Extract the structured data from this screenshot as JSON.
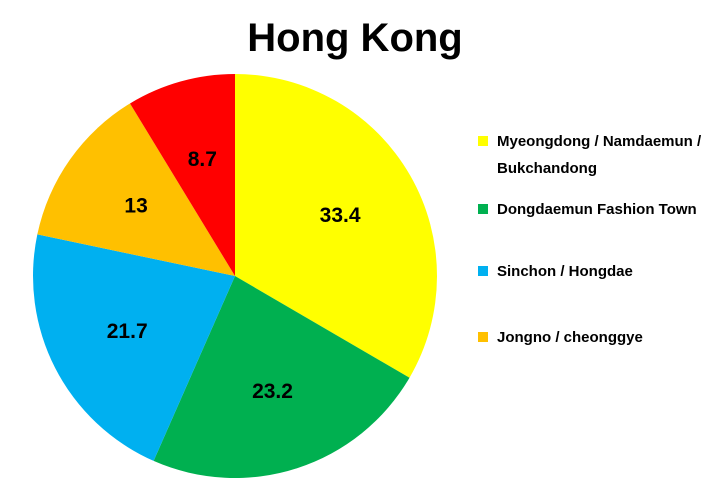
{
  "chart_data": {
    "type": "pie",
    "title": "Hong Kong",
    "slices": [
      {
        "label": "Myeongdong / Namdaemun / Bukchandong",
        "value": 33.4,
        "display": "33.4",
        "color": "#FFFF00"
      },
      {
        "label": "Dongdaemun Fashion Town",
        "value": 23.2,
        "display": "23.2",
        "color": "#00B050"
      },
      {
        "label": "Sinchon / Hongdae",
        "value": 21.7,
        "display": "21.7",
        "color": "#00B0F0"
      },
      {
        "label": "Jongno / cheonggye",
        "value": 13,
        "display": "13",
        "color": "#FFC000"
      },
      {
        "label": "",
        "value": 8.7,
        "display": "8.7",
        "color": "#FF0000"
      }
    ],
    "start_angle": "12 o'clock",
    "direction": "clockwise",
    "legend_position": "right"
  }
}
